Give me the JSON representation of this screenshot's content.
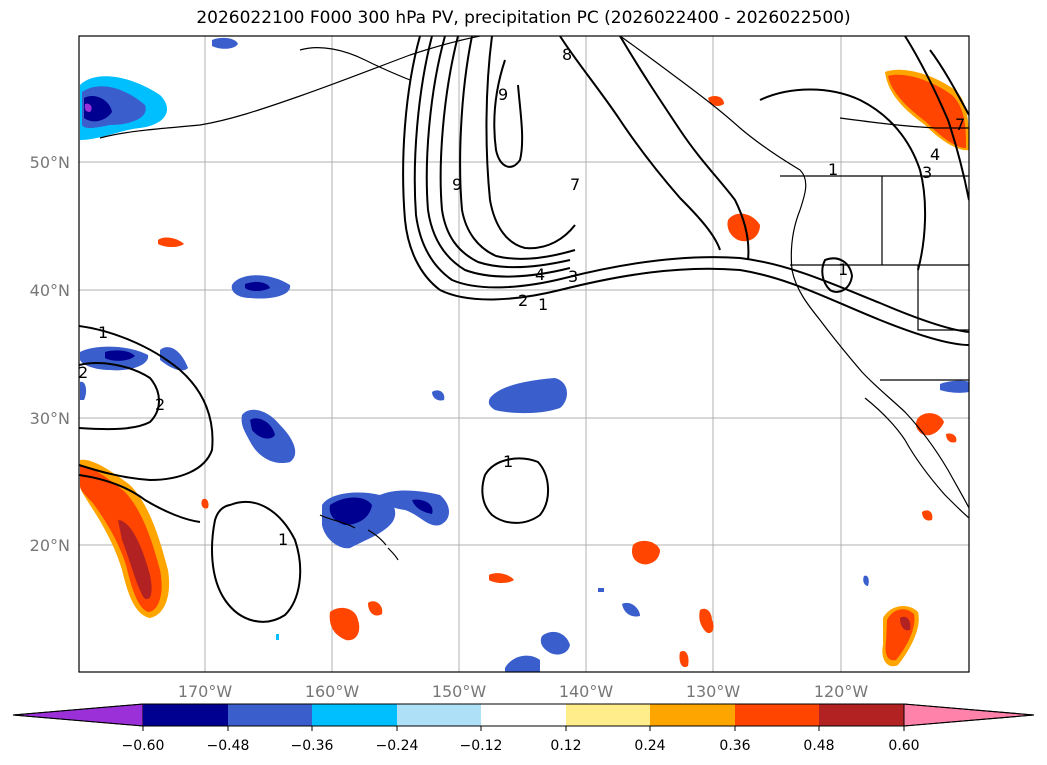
{
  "title": "2026022100 F000 300 hPa PV, precipitation PC (2026022400 - 2026022500)",
  "lat_labels": [
    "50°N",
    "40°N",
    "30°N",
    "20°N"
  ],
  "lon_labels": [
    "170°W",
    "160°W",
    "150°W",
    "140°W",
    "130°W",
    "120°W"
  ],
  "colorbar": {
    "ticks": [
      "−0.60",
      "−0.48",
      "−0.36",
      "−0.24",
      "−0.12",
      "0.12",
      "0.24",
      "0.36",
      "0.48",
      "0.60"
    ],
    "colors": [
      "#9b30d8",
      "#000090",
      "#3a5fcd",
      "#00bfff",
      "#aee0f8",
      "#ffffff",
      "#ffec8b",
      "#ffa500",
      "#ff4500",
      "#b22222",
      "#ff82ab"
    ]
  },
  "contour_labels": [
    "9",
    "8",
    "9",
    "7",
    "4",
    "3",
    "2",
    "1",
    "1",
    "1",
    "2",
    "1",
    "1",
    "1",
    "2",
    "3",
    "4",
    "7"
  ]
}
